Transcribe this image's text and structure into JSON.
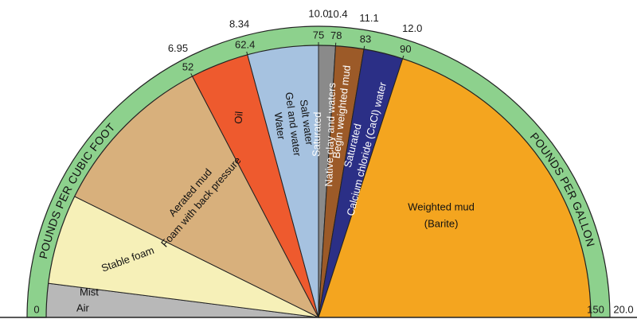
{
  "scale": {
    "pcf_max": 150,
    "outer_title": "POUNDS PER GALLON",
    "inner_title": "POUNDS PER CUBIC FOOT",
    "outer_ticks": [
      {
        "pcf": 52,
        "label": "6.95"
      },
      {
        "pcf": 62.4,
        "label": "8.34"
      },
      {
        "pcf": 75,
        "label": "10.0"
      },
      {
        "pcf": 78,
        "label": "10.4"
      },
      {
        "pcf": 83,
        "label": "11.1"
      },
      {
        "pcf": 90,
        "label": "12.0"
      },
      {
        "pcf": 150,
        "label": "20.0"
      }
    ],
    "inner_ticks": [
      {
        "pcf": 0,
        "label": "0"
      },
      {
        "pcf": 52,
        "label": "52"
      },
      {
        "pcf": 62.4,
        "label": "62.4"
      },
      {
        "pcf": 75,
        "label": "75"
      },
      {
        "pcf": 78,
        "label": "78"
      },
      {
        "pcf": 83,
        "label": "83"
      },
      {
        "pcf": 90,
        "label": "90"
      },
      {
        "pcf": 150,
        "label": "150"
      }
    ]
  },
  "segments": [
    {
      "id": "air-mist",
      "from": 0,
      "to": 6,
      "color": "#b8b8b8",
      "text_color": "#111111",
      "lines": [
        "Mist",
        "Air"
      ]
    },
    {
      "id": "stable-foam",
      "from": 6,
      "to": 22,
      "color": "#f6f0b8",
      "text_color": "#111111",
      "lines": [
        "Stable foam"
      ]
    },
    {
      "id": "aerated-mud",
      "from": 22,
      "to": 52,
      "color": "#d8b07c",
      "text_color": "#111111",
      "lines": [
        "Aerated mud",
        "Foam with back pressure"
      ]
    },
    {
      "id": "oil",
      "from": 52,
      "to": 62.4,
      "color": "#ee5a2e",
      "text_color": "#111111",
      "lines": [
        "Oil"
      ]
    },
    {
      "id": "gel-water",
      "from": 62.4,
      "to": 75,
      "color": "#a6c2e0",
      "text_color": "#111111",
      "lines": [
        "Salt water",
        "Gel and water",
        "Water"
      ]
    },
    {
      "id": "native-clay",
      "from": 75,
      "to": 78,
      "color": "#8a8a8a",
      "text_color": "#ffffff",
      "lines": [
        "Saturated",
        "Native clay and waters"
      ]
    },
    {
      "id": "begin-weighted",
      "from": 78,
      "to": 83,
      "color": "#9c5a28",
      "text_color": "#ffffff",
      "lines": [
        "Begin weighted mud"
      ]
    },
    {
      "id": "calcium-chloride",
      "from": 83,
      "to": 90,
      "color": "#2b2f86",
      "text_color": "#ffffff",
      "lines": [
        "Saturated",
        "Calcium chloride (CaCl) water"
      ]
    },
    {
      "id": "weighted-mud",
      "from": 90,
      "to": 150,
      "color": "#f4a51f",
      "text_color": "#111111",
      "lines": [
        "Weighted mud",
        "(Barite)"
      ]
    }
  ],
  "colors": {
    "band": "#8dd18d",
    "outline": "#222222"
  }
}
